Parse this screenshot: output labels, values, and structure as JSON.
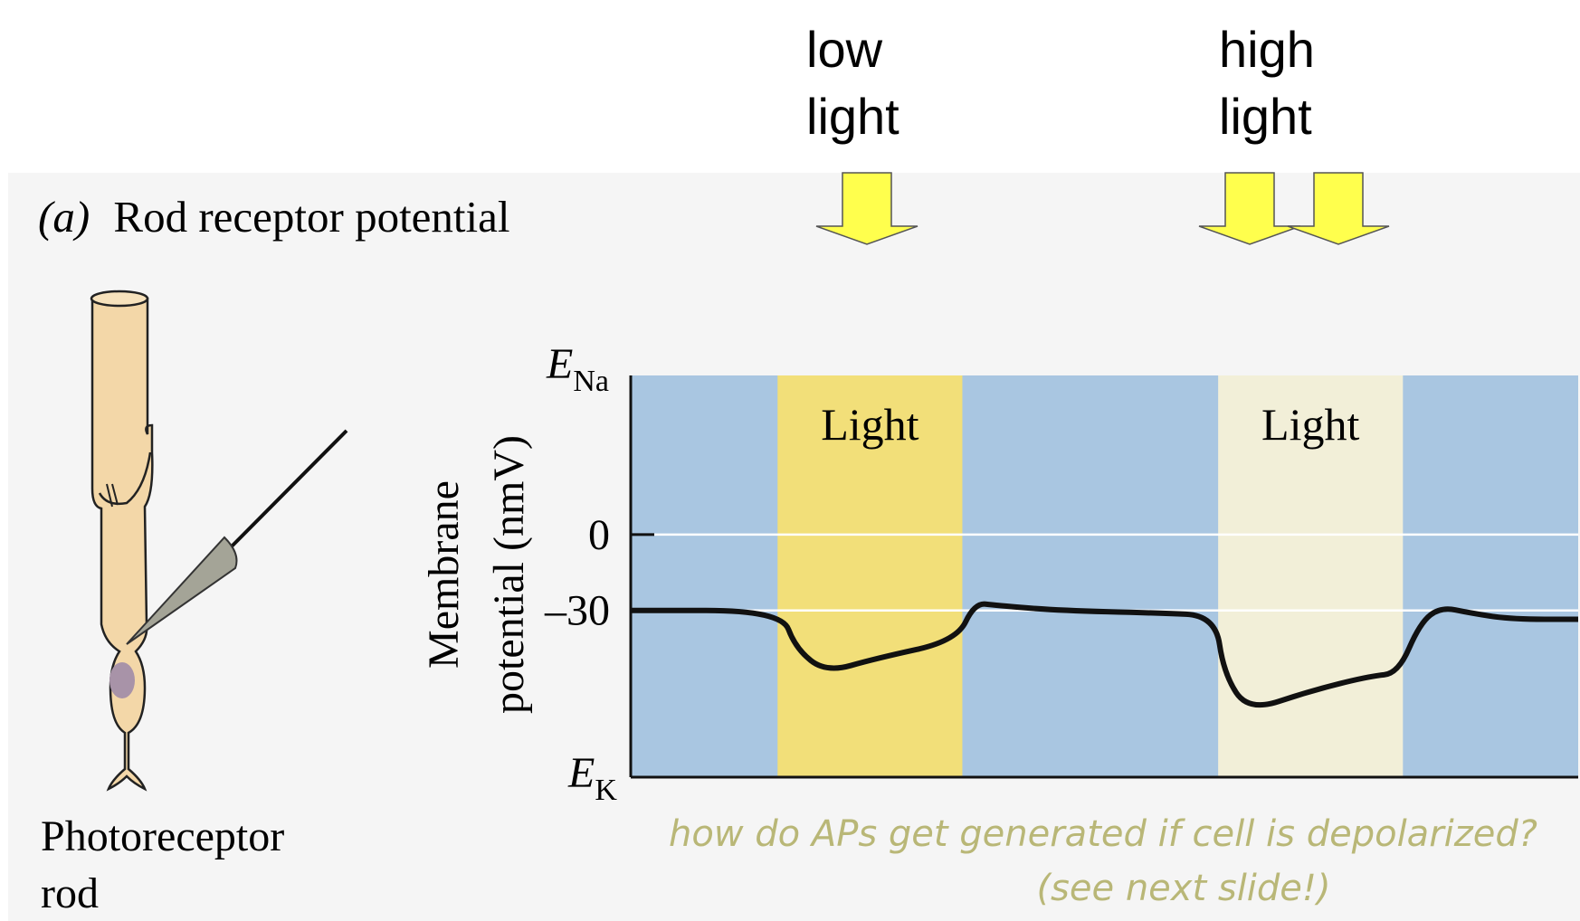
{
  "annotations": {
    "low_light": [
      "low",
      "light"
    ],
    "high_light": [
      "high",
      "light"
    ],
    "arrow_color": "#ffff4d",
    "handwritten_note": [
      "how do APs get generated if cell is depolarized?",
      "(see next slide!)"
    ],
    "note_color": "#b9b777"
  },
  "panel": {
    "label": "(a)",
    "title": "Rod receptor potential",
    "cell_caption": [
      "Photoreceptor",
      "rod"
    ]
  },
  "chart_data": {
    "type": "line",
    "ylabel": [
      "Membrane",
      "potential (nmV)"
    ],
    "y_ticks": [
      {
        "label": "0",
        "value": 0
      },
      {
        "label": "–30",
        "value": -30
      }
    ],
    "y_top_label": {
      "main": "E",
      "sub": "Na"
    },
    "y_bottom_label": {
      "main": "E",
      "sub": "K"
    },
    "ylim": [
      -96,
      63
    ],
    "xlim": [
      0,
      100
    ],
    "grid": "horizontal lines at 0 and -30",
    "background_color": "#a9c6e1",
    "light_periods": [
      {
        "label": "Light",
        "start": 15.5,
        "end": 35,
        "color": "#f2df79"
      },
      {
        "label": "Light",
        "start": 62,
        "end": 81.5,
        "color": "#f2efd8"
      }
    ],
    "trace": {
      "x": [
        0,
        15.9,
        17.4,
        20.6,
        25.9,
        34.4,
        36.3,
        38.6,
        45,
        55.5,
        61.7,
        62.6,
        65.2,
        71.6,
        78,
        81,
        83.3,
        85.5,
        88.6,
        92.9,
        100
      ],
      "y": [
        -30,
        -30,
        -45,
        -54.6,
        -49,
        -42,
        -27,
        -28,
        -30,
        -31,
        -32,
        -55,
        -70,
        -62,
        -56,
        -55,
        -35,
        -28.6,
        -31,
        -33.5,
        -33.5
      ]
    }
  }
}
